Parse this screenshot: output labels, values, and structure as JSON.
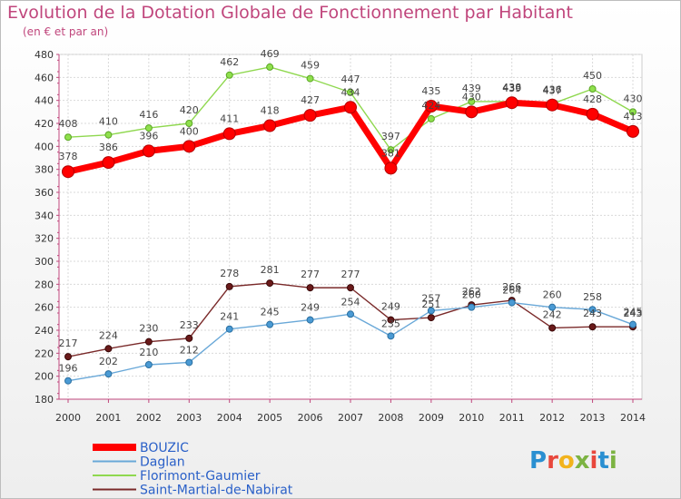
{
  "header": {
    "title": "Evolution de la Dotation Globale de Fonctionnement par Habitant",
    "subtitle": "(en € et par an)"
  },
  "brand": {
    "text": "Proxiti",
    "letter_colors": [
      "#2a8fd1",
      "#e8473c",
      "#f2b31c",
      "#7cb342",
      "#e8473c",
      "#2a8fd1",
      "#7cb342"
    ]
  },
  "chart_data": {
    "type": "line",
    "x": [
      "2000",
      "2001",
      "2002",
      "2003",
      "2004",
      "2005",
      "2006",
      "2007",
      "2008",
      "2009",
      "2010",
      "2011",
      "2012",
      "2013",
      "2014"
    ],
    "ylim": [
      180,
      480
    ],
    "yticks": [
      180,
      200,
      220,
      240,
      260,
      280,
      300,
      320,
      340,
      360,
      380,
      400,
      420,
      440,
      460,
      480
    ],
    "grid": true,
    "legend_position": "bottom-left",
    "series": [
      {
        "name": "BOUZIC",
        "color": "#ff0000",
        "values": [
          378,
          386,
          396,
          400,
          411,
          418,
          427,
          434,
          381,
          435,
          430,
          438,
          436,
          428,
          413
        ]
      },
      {
        "name": "Daglan",
        "color": "#3d8cc4",
        "values": [
          196,
          202,
          210,
          212,
          241,
          245,
          249,
          254,
          235,
          257,
          260,
          264,
          260,
          258,
          245
        ]
      },
      {
        "name": "Florimont-Gaumier",
        "color": "#6fce2a",
        "values": [
          408,
          410,
          416,
          420,
          462,
          469,
          459,
          447,
          397,
          424,
          439,
          439,
          437,
          450,
          430
        ]
      },
      {
        "name": "Saint-Martial-de-Nabirat",
        "color": "#6a1a1a",
        "values": [
          217,
          224,
          230,
          233,
          278,
          281,
          277,
          277,
          249,
          251,
          262,
          266,
          242,
          243,
          243
        ]
      }
    ]
  }
}
